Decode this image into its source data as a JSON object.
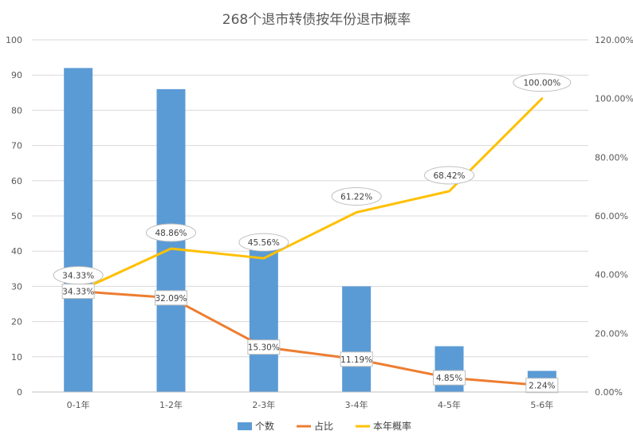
{
  "chart_data": {
    "type": "bar",
    "title": "268个退市转债按年份退市概率",
    "categories": [
      "0-1年",
      "1-2年",
      "2-3年",
      "3-4年",
      "4-5年",
      "5-6年"
    ],
    "series": [
      {
        "name": "个数",
        "kind": "bar",
        "axis": "left",
        "color": "#5B9BD5",
        "values": [
          92,
          86,
          41,
          30,
          13,
          6
        ]
      },
      {
        "name": "占比",
        "kind": "line",
        "axis": "right",
        "color": "#ED7D31",
        "values": [
          34.33,
          32.09,
          15.3,
          11.19,
          4.85,
          2.24
        ],
        "labels": [
          "34.33%",
          "32.09%",
          "15.30%",
          "11.19%",
          "4.85%",
          "2.24%"
        ]
      },
      {
        "name": "本年概率",
        "kind": "line",
        "axis": "right",
        "color": "#FFC000",
        "values": [
          34.33,
          48.86,
          45.56,
          61.22,
          68.42,
          100.0
        ],
        "labels": [
          "34.33%",
          "48.86%",
          "45.56%",
          "61.22%",
          "68.42%",
          "100.00%"
        ]
      }
    ],
    "y_left": {
      "min": 0,
      "max": 100,
      "step": 10,
      "ticks": [
        "0",
        "10",
        "20",
        "30",
        "40",
        "50",
        "60",
        "70",
        "80",
        "90",
        "100"
      ]
    },
    "y_right": {
      "min": 0,
      "max": 120,
      "step": 20,
      "ticks": [
        "0.00%",
        "20.00%",
        "40.00%",
        "60.00%",
        "80.00%",
        "100.00%",
        "120.00%"
      ]
    },
    "grid": true,
    "legend_position": "bottom"
  }
}
